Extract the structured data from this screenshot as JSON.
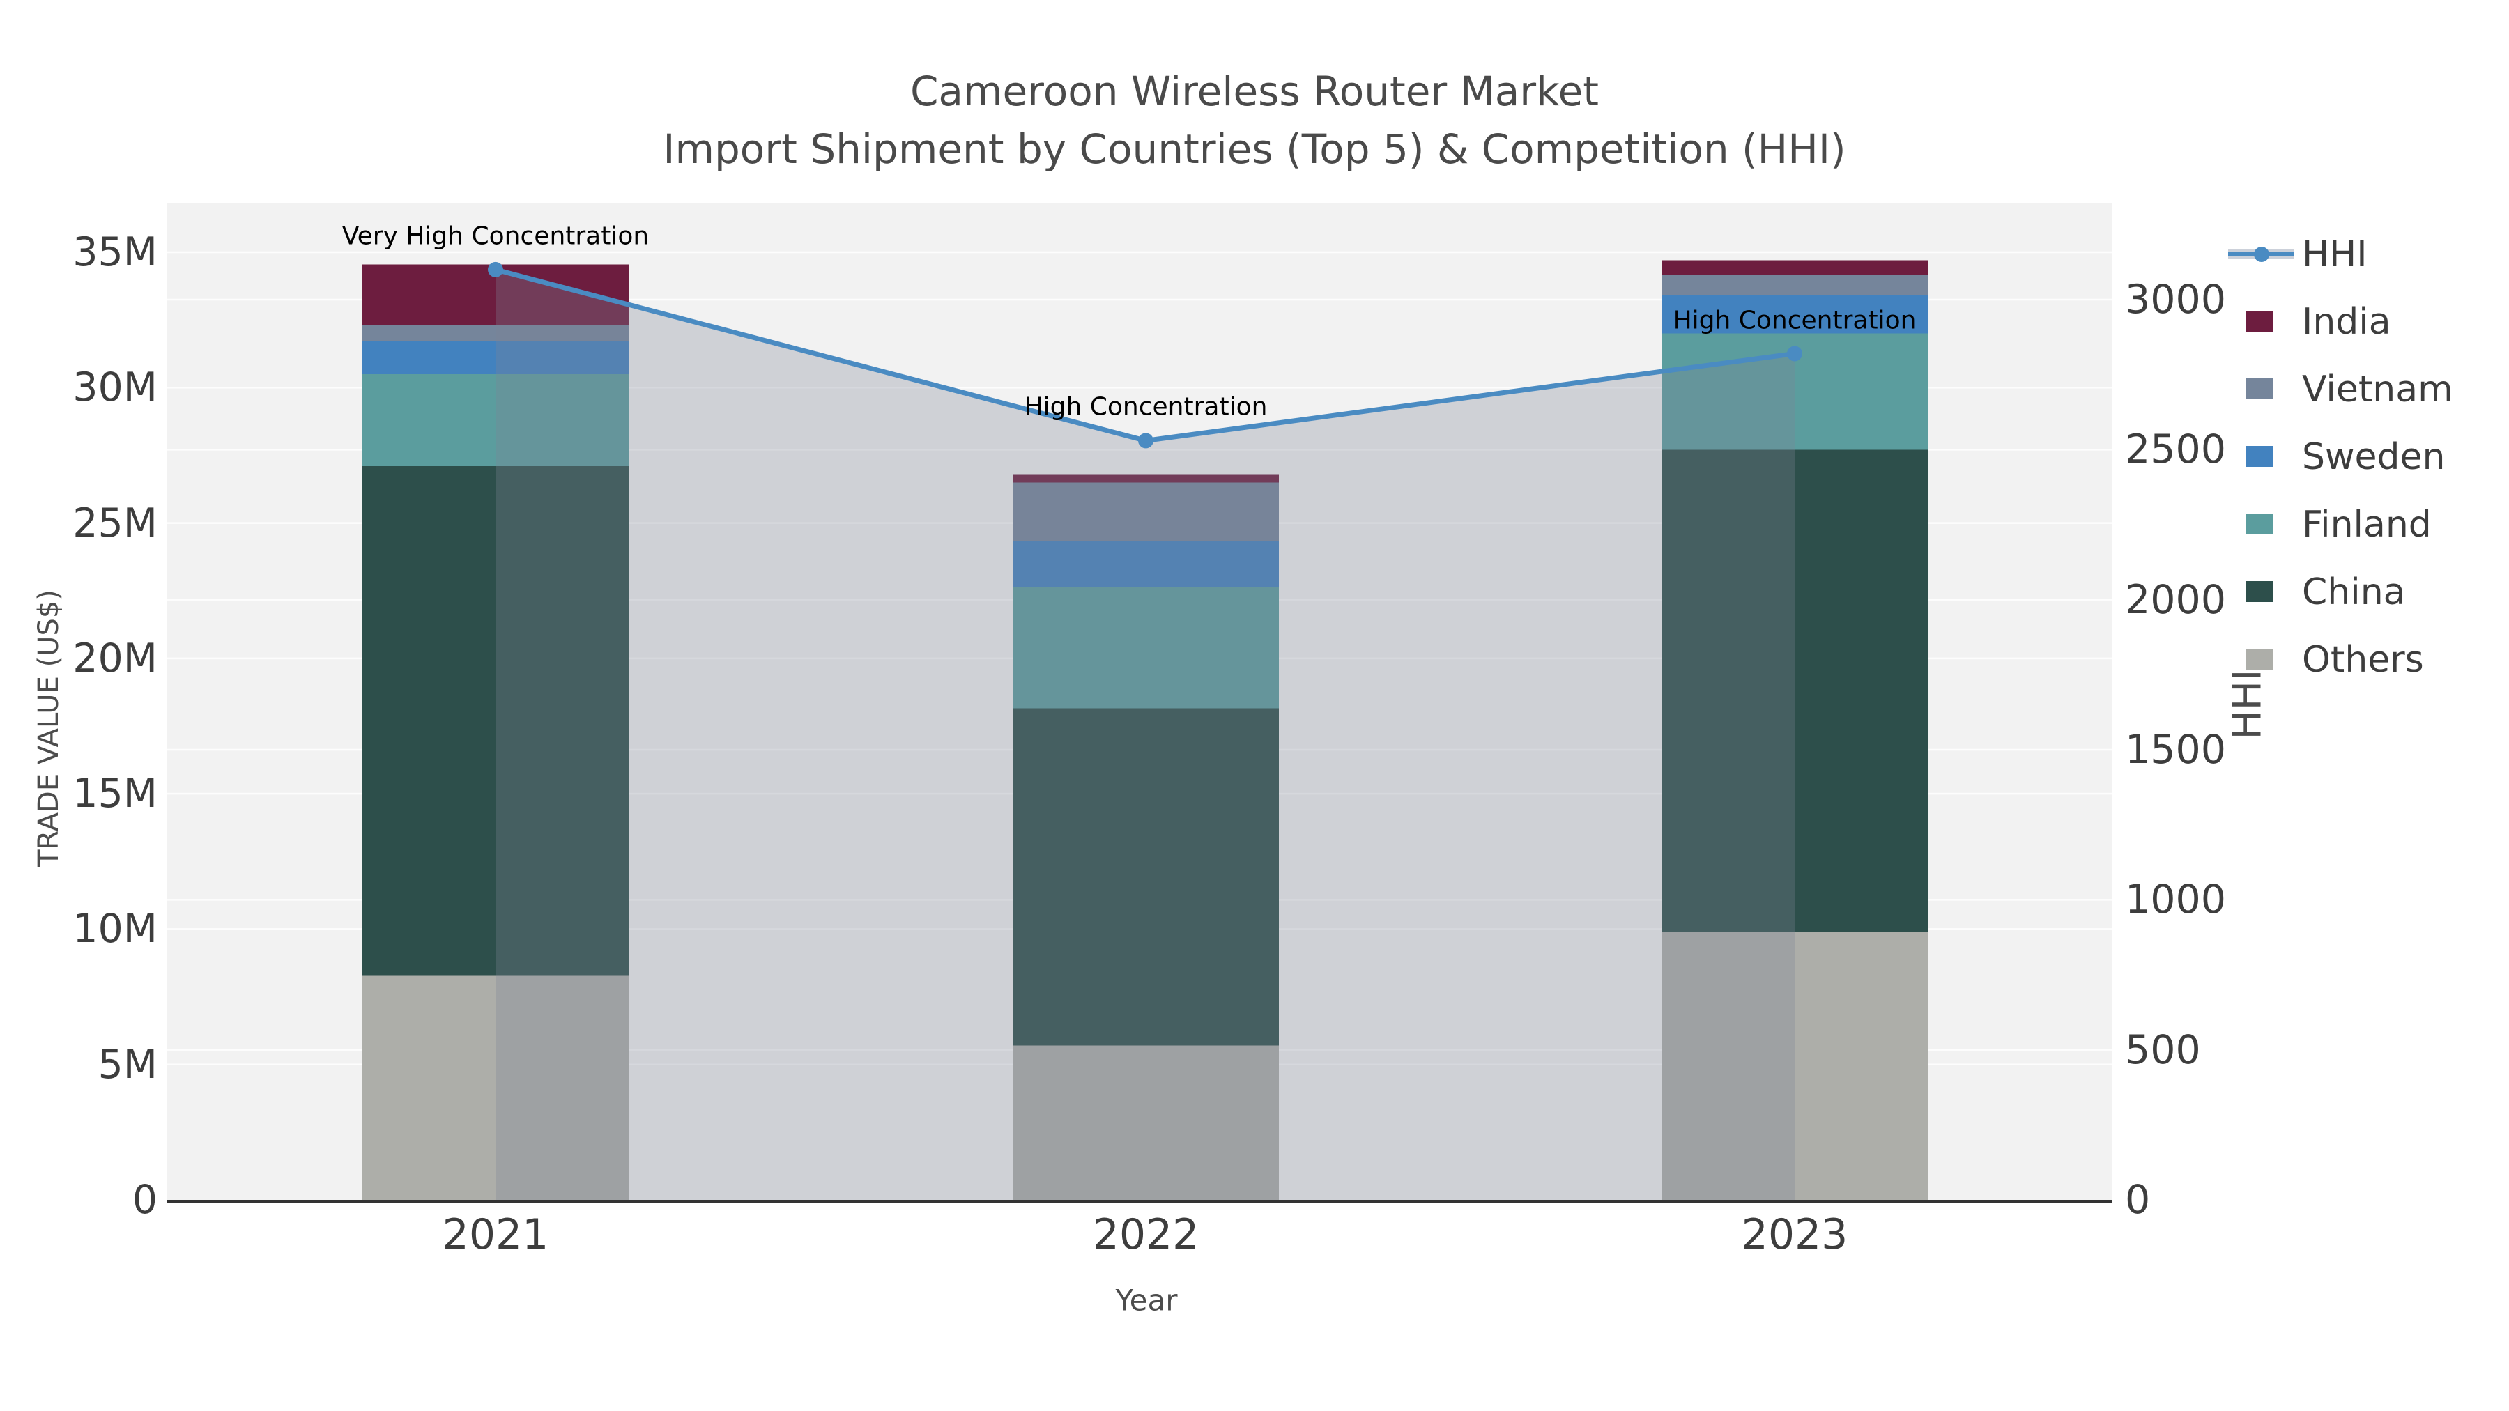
{
  "title": {
    "line1": "Cameroon Wireless Router Market",
    "line2": "Import Shipment by Countries (Top 5) & Competition (HHI)"
  },
  "chart_data": {
    "type": "bar",
    "subtype": "stacked-bar-with-line-overlay",
    "categories": [
      "2021",
      "2022",
      "2023"
    ],
    "series": [
      {
        "name": "Others",
        "color": "#adaea9",
        "values": [
          8.3,
          5.7,
          9.9
        ]
      },
      {
        "name": "China",
        "color": "#2d4f4b",
        "values": [
          18.8,
          12.45,
          17.8
        ]
      },
      {
        "name": "Finland",
        "color": "#5b9d9e",
        "values": [
          3.4,
          4.5,
          4.3
        ]
      },
      {
        "name": "Sweden",
        "color": "#4282bf",
        "values": [
          1.2,
          1.7,
          1.4
        ]
      },
      {
        "name": "Vietnam",
        "color": "#75859b",
        "values": [
          0.6,
          2.15,
          0.75
        ]
      },
      {
        "name": "India",
        "color": "#6d1d3f",
        "values": [
          2.25,
          0.3,
          0.55
        ]
      }
    ],
    "values_unit": "millions of US$",
    "line_series": {
      "name": "HHI",
      "color": "#4a8bc2",
      "values": [
        3100,
        2530,
        2820
      ]
    },
    "annotations": [
      {
        "category": "2021",
        "text": "Very High Concentration"
      },
      {
        "category": "2022",
        "text": "High Concentration"
      },
      {
        "category": "2023",
        "text": "High Concentration"
      }
    ],
    "xlabel": "Year",
    "ylabel_left": "TRADE VALUE (US$)",
    "ylabel_right": "HHI",
    "yticks_left": {
      "labels": [
        "0",
        "5M",
        "10M",
        "15M",
        "20M",
        "25M",
        "30M",
        "35M"
      ],
      "values": [
        0,
        5,
        10,
        15,
        20,
        25,
        30,
        35
      ]
    },
    "yticks_right": {
      "labels": [
        "0",
        "500",
        "1000",
        "1500",
        "2000",
        "2500",
        "3000"
      ],
      "values": [
        0,
        500,
        1000,
        1500,
        2000,
        2500,
        3000
      ]
    },
    "ylim_left": [
      0,
      36.9
    ],
    "ylim_right": [
      0,
      3330
    ],
    "grid": true,
    "legend_position": "right-outside",
    "legend_order": [
      "HHI",
      "India",
      "Vietnam",
      "Sweden",
      "Finland",
      "China",
      "Others"
    ],
    "colors": {
      "plot_background": "#f2f2f2",
      "figure_background": "#ffffff",
      "gridline": "#ffffff",
      "axis_spine": "#333333",
      "hhi_fill_overlay": "rgba(125,132,150,0.30)",
      "legend_fill_band": "#ccd1da",
      "tick_text": "#3d3d3d",
      "title_text": "#4a4a4a",
      "annotation_text": "#000000"
    }
  }
}
